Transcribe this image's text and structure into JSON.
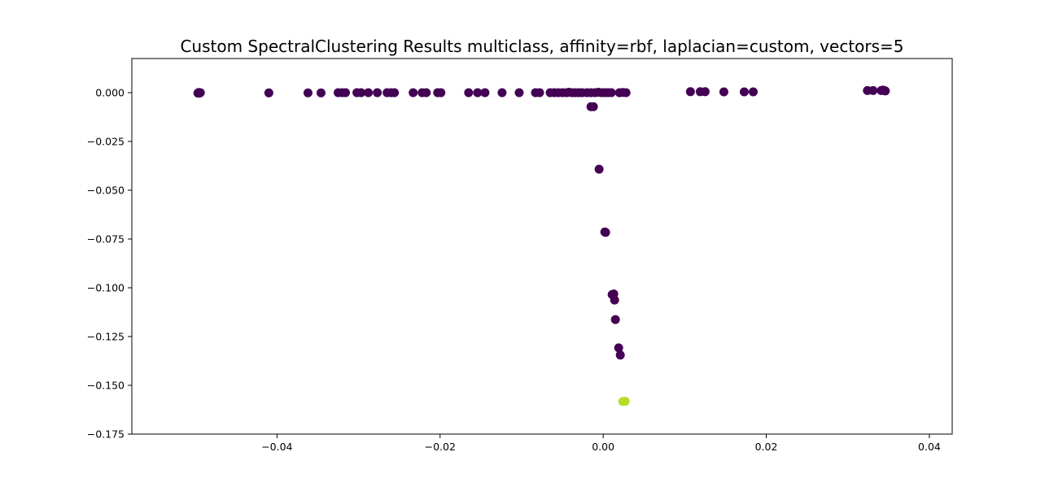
{
  "chart_data": {
    "type": "scatter",
    "title": "Custom SpectralClustering Results multiclass, affinity=rbf, laplacian=custom, vectors=5",
    "xlabel": "",
    "ylabel": "",
    "xlim": [
      -0.0578,
      0.0428
    ],
    "ylim": [
      -0.175,
      0.0175
    ],
    "x_ticks": [
      -0.04,
      -0.02,
      0.0,
      0.02,
      0.04
    ],
    "x_tick_labels": [
      "−0.04",
      "−0.02",
      "0.00",
      "0.02",
      "0.04"
    ],
    "y_ticks": [
      0.0,
      -0.025,
      -0.05,
      -0.075,
      -0.1,
      -0.125,
      -0.15,
      -0.175
    ],
    "y_tick_labels": [
      "0.000",
      "−0.025",
      "−0.050",
      "−0.075",
      "−0.100",
      "−0.125",
      "−0.150",
      "−0.175"
    ],
    "grid": false,
    "legend": "none",
    "colors": {
      "cluster_0": "#440154",
      "cluster_1": "#b5de2b"
    },
    "series": [
      {
        "color": "#440154",
        "points": [
          [
            -0.0497,
            -0.0002
          ],
          [
            -0.0496,
            0.0001
          ],
          [
            -0.0495,
            -0.0002
          ],
          [
            -0.0494,
            0.0
          ],
          [
            -0.041,
            -0.0001
          ],
          [
            -0.0362,
            -0.0001
          ],
          [
            -0.0346,
            -0.0001
          ],
          [
            -0.0325,
            0.0
          ],
          [
            -0.032,
            0.0
          ],
          [
            -0.0316,
            0.0
          ],
          [
            -0.0302,
            0.0
          ],
          [
            -0.0297,
            0.0
          ],
          [
            -0.0288,
            0.0
          ],
          [
            -0.0277,
            0.0
          ],
          [
            -0.0265,
            0.0
          ],
          [
            -0.026,
            0.0
          ],
          [
            -0.0256,
            0.0
          ],
          [
            -0.0233,
            0.0
          ],
          [
            -0.0222,
            0.0
          ],
          [
            -0.0217,
            0.0
          ],
          [
            -0.0203,
            0.0
          ],
          [
            -0.0199,
            0.0
          ],
          [
            -0.0165,
            0.0
          ],
          [
            -0.0154,
            0.0
          ],
          [
            -0.0145,
            0.0
          ],
          [
            -0.0124,
            0.0
          ],
          [
            -0.0103,
            0.0
          ],
          [
            -0.0083,
            0.0
          ],
          [
            -0.0078,
            0.0
          ],
          [
            -0.0065,
            0.0
          ],
          [
            -0.006,
            0.0
          ],
          [
            -0.0055,
            0.0
          ],
          [
            -0.005,
            0.0
          ],
          [
            -0.0045,
            0.0
          ],
          [
            -0.0042,
            0.0002
          ],
          [
            -0.0038,
            0.0
          ],
          [
            -0.0034,
            0.0
          ],
          [
            -0.003,
            0.0
          ],
          [
            -0.0026,
            0.0
          ],
          [
            -0.002,
            0.0
          ],
          [
            -0.0015,
            0.0
          ],
          [
            -0.001,
            0.0
          ],
          [
            -0.0006,
            0.0002
          ],
          [
            -0.0002,
            0.0
          ],
          [
            0.0002,
            0.0
          ],
          [
            0.0006,
            0.0
          ],
          [
            0.001,
            0.0
          ],
          [
            0.002,
            0.0
          ],
          [
            0.0024,
            0.0001
          ],
          [
            0.0028,
            0.0
          ],
          [
            -0.0015,
            -0.0072
          ],
          [
            -0.0012,
            -0.0072
          ],
          [
            -0.0005,
            -0.0392
          ],
          [
            0.0002,
            -0.0714
          ],
          [
            0.0003,
            -0.0716
          ],
          [
            0.0011,
            -0.1035
          ],
          [
            0.0013,
            -0.1032
          ],
          [
            0.0014,
            -0.1063
          ],
          [
            0.0015,
            -0.1163
          ],
          [
            0.0019,
            -0.1308
          ],
          [
            0.0021,
            -0.1345
          ],
          [
            0.0107,
            0.0005
          ],
          [
            0.0119,
            0.0005
          ],
          [
            0.0125,
            0.0005
          ],
          [
            0.0148,
            0.0004
          ],
          [
            0.0173,
            0.0004
          ],
          [
            0.0184,
            0.0004
          ],
          [
            0.0324,
            0.0011
          ],
          [
            0.0331,
            0.0011
          ],
          [
            0.0341,
            0.0011
          ],
          [
            0.0343,
            0.0013
          ],
          [
            0.0345,
            0.0011
          ],
          [
            0.0346,
            0.0009
          ]
        ]
      },
      {
        "color": "#b5de2b",
        "points": [
          [
            0.0024,
            -0.1583
          ],
          [
            0.0027,
            -0.1582
          ]
        ]
      }
    ]
  }
}
